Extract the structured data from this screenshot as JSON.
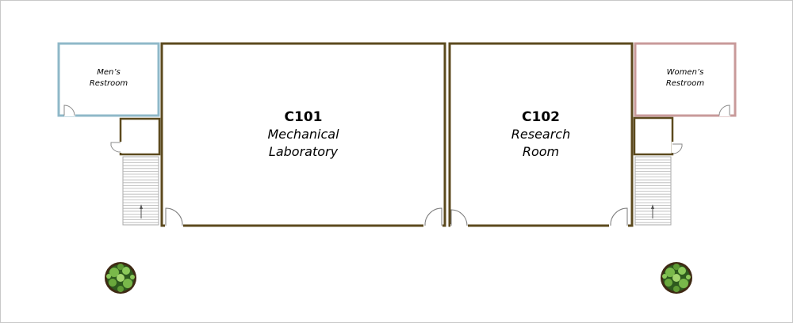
{
  "rooms": {
    "c101": {
      "number": "C101",
      "line1": "Mechanical",
      "line2": "Laboratory"
    },
    "c102": {
      "number": "C102",
      "line1": "Research",
      "line2": "Room"
    },
    "mens": {
      "line1": "Men’s",
      "line2": "Restroom"
    },
    "womens": {
      "line1": "Women’s",
      "line2": "Restroom"
    }
  },
  "colors": {
    "wall": "#5c4a1e",
    "mens_wall": "#8fb8c8",
    "womens_wall": "#c89a9a",
    "stairs": "#a8a8a8",
    "plant_dark": "#2e5a1e",
    "plant_light": "#79b84a"
  }
}
